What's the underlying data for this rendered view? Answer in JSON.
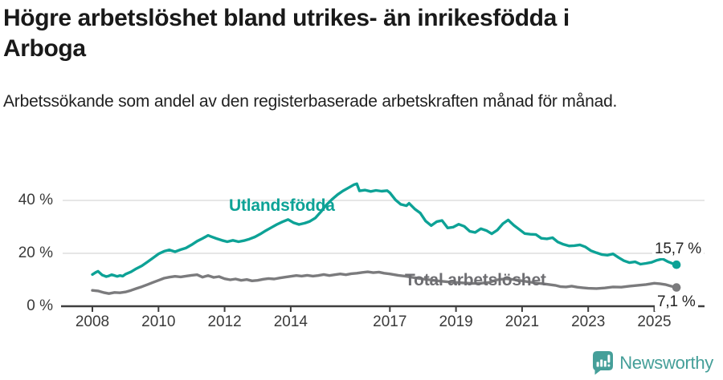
{
  "header": {
    "title": "Högre arbetslöshet bland utrikes- än inrikesfödda i Arboga",
    "subtitle": "Arbetssökande som andel av den registerbaserade arbetskraften månad för månad."
  },
  "footer": {
    "brand": "Newsworthy",
    "logo_icon": "bar-chart-speech-bubble-icon"
  },
  "colors": {
    "accent_teal": "#0da296",
    "series_gray": "#7b7b7d",
    "label_gray": "#6e6e72",
    "gridline": "#dedede",
    "axis": "#3f3f3f",
    "text_dark": "#191919",
    "logo_teal": "#459f99"
  },
  "chart_data": {
    "type": "line",
    "title": "Högre arbetslöshet bland utrikes- än inrikesfödda i Arboga",
    "subtitle": "Arbetssökande som andel av den registerbaserade arbetskraften månad för månad.",
    "unit": "%",
    "grid": "horizontal",
    "legend": "inline-labels-at-lines",
    "x_axis": {
      "range": [
        2007.1,
        2026.5
      ],
      "ticks": [
        2008,
        2010,
        2012,
        2014,
        2017,
        2019,
        2021,
        2023,
        2025
      ]
    },
    "y_axis": {
      "range": [
        0,
        48
      ],
      "ticks": [
        {
          "value": 0,
          "label": "0 %"
        },
        {
          "value": 20,
          "label": "20 %"
        },
        {
          "value": 40,
          "label": "40 %"
        }
      ]
    },
    "series": [
      {
        "name": "Total arbetslöshet",
        "color": "#7b7b7d",
        "end_value": 7.1,
        "end_label": "7,1 %",
        "points": [
          [
            2008.0,
            6.0
          ],
          [
            2008.17,
            5.8
          ],
          [
            2008.33,
            5.2
          ],
          [
            2008.5,
            4.8
          ],
          [
            2008.67,
            5.2
          ],
          [
            2008.83,
            5.1
          ],
          [
            2009.0,
            5.4
          ],
          [
            2009.17,
            6.0
          ],
          [
            2009.33,
            6.7
          ],
          [
            2009.5,
            7.4
          ],
          [
            2009.67,
            8.2
          ],
          [
            2009.83,
            9.0
          ],
          [
            2010.0,
            9.8
          ],
          [
            2010.17,
            10.6
          ],
          [
            2010.33,
            11.0
          ],
          [
            2010.5,
            11.3
          ],
          [
            2010.67,
            11.1
          ],
          [
            2010.83,
            11.4
          ],
          [
            2011.0,
            11.7
          ],
          [
            2011.17,
            11.9
          ],
          [
            2011.33,
            11.0
          ],
          [
            2011.5,
            11.6
          ],
          [
            2011.67,
            10.9
          ],
          [
            2011.83,
            11.2
          ],
          [
            2012.0,
            10.4
          ],
          [
            2012.17,
            10.0
          ],
          [
            2012.33,
            10.3
          ],
          [
            2012.5,
            9.8
          ],
          [
            2012.67,
            10.1
          ],
          [
            2012.83,
            9.6
          ],
          [
            2013.0,
            9.8
          ],
          [
            2013.17,
            10.2
          ],
          [
            2013.33,
            10.5
          ],
          [
            2013.5,
            10.3
          ],
          [
            2013.67,
            10.7
          ],
          [
            2013.83,
            11.0
          ],
          [
            2014.0,
            11.3
          ],
          [
            2014.17,
            11.6
          ],
          [
            2014.33,
            11.4
          ],
          [
            2014.5,
            11.7
          ],
          [
            2014.67,
            11.4
          ],
          [
            2014.83,
            11.6
          ],
          [
            2015.0,
            12.0
          ],
          [
            2015.17,
            11.6
          ],
          [
            2015.33,
            11.9
          ],
          [
            2015.5,
            12.2
          ],
          [
            2015.67,
            11.9
          ],
          [
            2015.83,
            12.3
          ],
          [
            2016.0,
            12.5
          ],
          [
            2016.17,
            12.8
          ],
          [
            2016.33,
            13.0
          ],
          [
            2016.5,
            12.7
          ],
          [
            2016.67,
            12.9
          ],
          [
            2016.83,
            12.5
          ],
          [
            2017.0,
            12.2
          ],
          [
            2017.25,
            11.7
          ],
          [
            2017.5,
            11.3
          ],
          [
            2017.75,
            10.8
          ],
          [
            2018.0,
            10.3
          ],
          [
            2018.25,
            9.9
          ],
          [
            2018.5,
            9.5
          ],
          [
            2018.75,
            9.2
          ],
          [
            2019.0,
            9.0
          ],
          [
            2019.25,
            8.8
          ],
          [
            2019.5,
            8.6
          ],
          [
            2019.75,
            8.7
          ],
          [
            2020.0,
            9.0
          ],
          [
            2020.25,
            10.0
          ],
          [
            2020.5,
            10.4
          ],
          [
            2020.75,
            10.1
          ],
          [
            2021.0,
            9.6
          ],
          [
            2021.25,
            9.1
          ],
          [
            2021.5,
            8.7
          ],
          [
            2021.75,
            8.3
          ],
          [
            2022.0,
            7.9
          ],
          [
            2022.17,
            7.4
          ],
          [
            2022.33,
            7.3
          ],
          [
            2022.5,
            7.6
          ],
          [
            2022.67,
            7.2
          ],
          [
            2022.83,
            7.0
          ],
          [
            2023.0,
            6.8
          ],
          [
            2023.25,
            6.7
          ],
          [
            2023.5,
            6.9
          ],
          [
            2023.75,
            7.3
          ],
          [
            2024.0,
            7.2
          ],
          [
            2024.25,
            7.6
          ],
          [
            2024.5,
            7.9
          ],
          [
            2024.75,
            8.2
          ],
          [
            2025.0,
            8.7
          ],
          [
            2025.17,
            8.5
          ],
          [
            2025.33,
            8.2
          ],
          [
            2025.5,
            7.6
          ],
          [
            2025.67,
            7.1
          ]
        ]
      },
      {
        "name": "Utlandsfödda",
        "color": "#0da296",
        "end_value": 15.7,
        "end_label": "15,7 %",
        "points": [
          [
            2008.0,
            12.0
          ],
          [
            2008.1,
            12.8
          ],
          [
            2008.17,
            13.2
          ],
          [
            2008.3,
            11.8
          ],
          [
            2008.42,
            11.2
          ],
          [
            2008.5,
            11.5
          ],
          [
            2008.58,
            11.9
          ],
          [
            2008.67,
            11.6
          ],
          [
            2008.75,
            11.3
          ],
          [
            2008.83,
            11.6
          ],
          [
            2008.92,
            11.4
          ],
          [
            2009.0,
            12.1
          ],
          [
            2009.17,
            13.0
          ],
          [
            2009.33,
            14.2
          ],
          [
            2009.5,
            15.3
          ],
          [
            2009.67,
            16.8
          ],
          [
            2009.83,
            18.2
          ],
          [
            2010.0,
            19.8
          ],
          [
            2010.17,
            20.8
          ],
          [
            2010.33,
            21.3
          ],
          [
            2010.5,
            20.6
          ],
          [
            2010.67,
            21.4
          ],
          [
            2010.83,
            22.0
          ],
          [
            2011.0,
            23.2
          ],
          [
            2011.17,
            24.6
          ],
          [
            2011.33,
            25.6
          ],
          [
            2011.5,
            26.8
          ],
          [
            2011.58,
            26.4
          ],
          [
            2011.75,
            25.6
          ],
          [
            2011.92,
            24.9
          ],
          [
            2012.08,
            24.4
          ],
          [
            2012.25,
            24.9
          ],
          [
            2012.42,
            24.4
          ],
          [
            2012.58,
            24.8
          ],
          [
            2012.75,
            25.4
          ],
          [
            2012.92,
            26.2
          ],
          [
            2013.08,
            27.3
          ],
          [
            2013.25,
            28.6
          ],
          [
            2013.42,
            29.8
          ],
          [
            2013.58,
            30.9
          ],
          [
            2013.75,
            31.9
          ],
          [
            2013.92,
            32.8
          ],
          [
            2014.08,
            31.6
          ],
          [
            2014.25,
            30.9
          ],
          [
            2014.42,
            31.4
          ],
          [
            2014.58,
            32.1
          ],
          [
            2014.75,
            33.4
          ],
          [
            2014.92,
            35.8
          ],
          [
            2015.08,
            38.3
          ],
          [
            2015.25,
            40.4
          ],
          [
            2015.42,
            42.2
          ],
          [
            2015.58,
            43.6
          ],
          [
            2015.75,
            44.8
          ],
          [
            2015.92,
            46.0
          ],
          [
            2016.0,
            46.3
          ],
          [
            2016.08,
            43.6
          ],
          [
            2016.25,
            43.9
          ],
          [
            2016.42,
            43.4
          ],
          [
            2016.58,
            43.8
          ],
          [
            2016.75,
            43.5
          ],
          [
            2016.92,
            43.7
          ],
          [
            2017.0,
            42.9
          ],
          [
            2017.17,
            40.2
          ],
          [
            2017.33,
            38.5
          ],
          [
            2017.5,
            38.0
          ],
          [
            2017.58,
            38.9
          ],
          [
            2017.75,
            36.8
          ],
          [
            2017.92,
            35.2
          ],
          [
            2018.08,
            32.2
          ],
          [
            2018.25,
            30.5
          ],
          [
            2018.42,
            32.0
          ],
          [
            2018.58,
            32.4
          ],
          [
            2018.75,
            29.6
          ],
          [
            2018.92,
            29.9
          ],
          [
            2019.08,
            31.0
          ],
          [
            2019.25,
            30.2
          ],
          [
            2019.42,
            28.3
          ],
          [
            2019.58,
            27.9
          ],
          [
            2019.75,
            29.3
          ],
          [
            2019.92,
            28.6
          ],
          [
            2020.08,
            27.4
          ],
          [
            2020.25,
            28.8
          ],
          [
            2020.42,
            31.2
          ],
          [
            2020.58,
            32.6
          ],
          [
            2020.75,
            30.6
          ],
          [
            2020.92,
            29.0
          ],
          [
            2021.08,
            27.5
          ],
          [
            2021.25,
            27.2
          ],
          [
            2021.42,
            27.1
          ],
          [
            2021.58,
            25.7
          ],
          [
            2021.75,
            25.5
          ],
          [
            2021.92,
            25.9
          ],
          [
            2022.08,
            24.3
          ],
          [
            2022.25,
            23.4
          ],
          [
            2022.42,
            22.8
          ],
          [
            2022.58,
            22.9
          ],
          [
            2022.75,
            23.2
          ],
          [
            2022.92,
            22.4
          ],
          [
            2023.08,
            21.0
          ],
          [
            2023.25,
            20.2
          ],
          [
            2023.42,
            19.5
          ],
          [
            2023.58,
            19.3
          ],
          [
            2023.75,
            19.8
          ],
          [
            2023.92,
            18.4
          ],
          [
            2024.08,
            17.2
          ],
          [
            2024.25,
            16.5
          ],
          [
            2024.42,
            16.8
          ],
          [
            2024.58,
            15.9
          ],
          [
            2024.75,
            16.2
          ],
          [
            2024.92,
            16.6
          ],
          [
            2025.08,
            17.4
          ],
          [
            2025.25,
            17.9
          ],
          [
            2025.42,
            16.8
          ],
          [
            2025.58,
            16.0
          ],
          [
            2025.67,
            15.7
          ]
        ]
      }
    ]
  }
}
